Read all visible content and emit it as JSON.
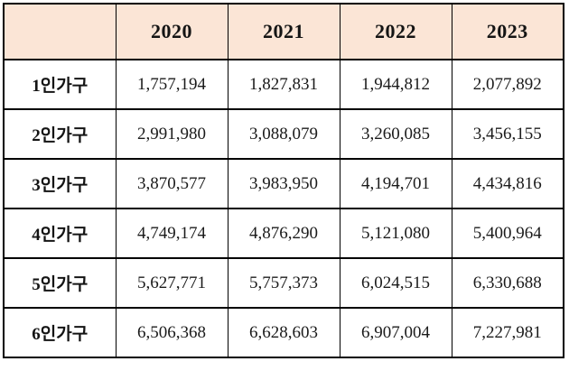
{
  "page": {
    "background": "#ffffff"
  },
  "table": {
    "header": {
      "corner": "",
      "years": [
        "2020",
        "2021",
        "2022",
        "2023"
      ]
    },
    "rows": [
      {
        "label": "1인가구",
        "values": [
          "1,757,194",
          "1,827,831",
          "1,944,812",
          "2,077,892"
        ]
      },
      {
        "label": "2인가구",
        "values": [
          "2,991,980",
          "3,088,079",
          "3,260,085",
          "3,456,155"
        ]
      },
      {
        "label": "3인가구",
        "values": [
          "3,870,577",
          "3,983,950",
          "4,194,701",
          "4,434,816"
        ]
      },
      {
        "label": "4인가구",
        "values": [
          "4,749,174",
          "4,876,290",
          "5,121,080",
          "5,400,964"
        ]
      },
      {
        "label": "5인가구",
        "values": [
          "5,627,771",
          "5,757,373",
          "6,024,515",
          "6,330,688"
        ]
      },
      {
        "label": "6인가구",
        "values": [
          "6,506,368",
          "6,628,603",
          "6,907,004",
          "7,227,981"
        ]
      }
    ],
    "style": {
      "header_bg": "#FBE5D6",
      "border_color": "#000000",
      "body_bg": "#FFFFFF",
      "text_color": "#1B1B1B"
    }
  },
  "chart_data": {
    "type": "table",
    "title": "",
    "columns": [
      "",
      "2020",
      "2021",
      "2022",
      "2023"
    ],
    "row_labels": [
      "1인가구",
      "2인가구",
      "3인가구",
      "4인가구",
      "5인가구",
      "6인가구"
    ],
    "series": [
      {
        "name": "2020",
        "values": [
          1757194,
          2991980,
          3870577,
          4749174,
          5627771,
          6506368
        ]
      },
      {
        "name": "2021",
        "values": [
          1827831,
          3088079,
          3983950,
          4876290,
          5757373,
          6628603
        ]
      },
      {
        "name": "2022",
        "values": [
          1944812,
          3260085,
          4194701,
          5121080,
          6024515,
          6907004
        ]
      },
      {
        "name": "2023",
        "values": [
          2077892,
          3456155,
          4434816,
          5400964,
          6330688,
          7227981
        ]
      }
    ],
    "layout": {
      "header_fill": "#FBE5D6",
      "grid": "on",
      "value_format": "thousands-comma"
    }
  }
}
